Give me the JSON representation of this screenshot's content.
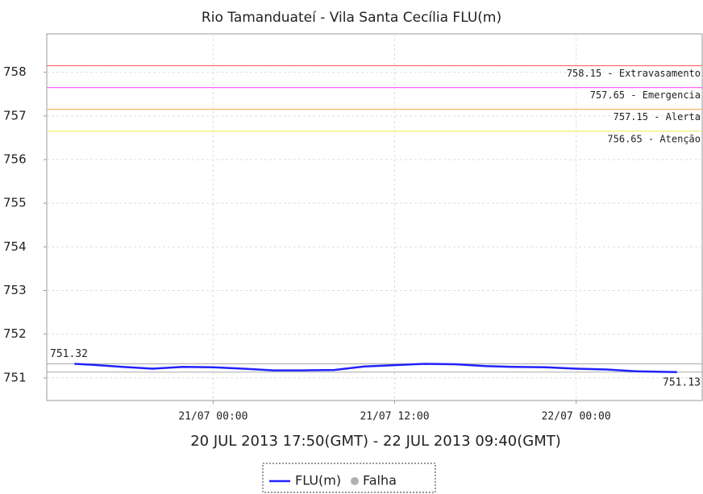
{
  "chart_data": {
    "type": "line",
    "title": "Rio Tamanduateí - Vila Santa Cecília FLU(m)",
    "x_label": "20 JUL 2013 17:50(GMT) - 22 JUL 2013 09:40(GMT)",
    "x": [
      "20/07 14:50",
      "20/07 16:00",
      "20/07 18:00",
      "20/07 20:00",
      "20/07 22:00",
      "21/07 00:00",
      "21/07 02:00",
      "21/07 04:00",
      "21/07 06:00",
      "21/07 08:00",
      "21/07 10:00",
      "21/07 12:00",
      "21/07 14:00",
      "21/07 16:00",
      "21/07 18:00",
      "21/07 20:00",
      "21/07 22:00",
      "22/07 00:00",
      "22/07 02:00",
      "22/07 04:00",
      "22/07 06:40"
    ],
    "series": [
      {
        "name": "FLU(m)",
        "color": "#2222ff",
        "values": [
          751.32,
          751.3,
          751.25,
          751.21,
          751.25,
          751.24,
          751.21,
          751.17,
          751.17,
          751.18,
          751.26,
          751.29,
          751.32,
          751.31,
          751.27,
          751.25,
          751.24,
          751.21,
          751.19,
          751.15,
          751.13
        ]
      }
    ],
    "failure_legend": {
      "name": "Falha",
      "color": "#b0b0b0"
    },
    "xlim": [
      "20/07 13:00",
      "22/07 08:20"
    ],
    "xticks": [
      "21/07 00:00",
      "21/07 12:00",
      "22/07 00:00"
    ],
    "ylim": [
      750.48,
      758.88
    ],
    "yticks": [
      751,
      752,
      753,
      754,
      755,
      756,
      757,
      758
    ],
    "grid": true,
    "thresholds": [
      {
        "value": 758.15,
        "label": "758.15 - Extravasamento",
        "color": "#ff6666"
      },
      {
        "value": 757.65,
        "label": "757.65 - Emergencia",
        "color": "#ff66ff"
      },
      {
        "value": 757.15,
        "label": "757.15 - Alerta",
        "color": "#ffaa55"
      },
      {
        "value": 756.65,
        "label": "756.65 - Atenção",
        "color": "#eeee66"
      }
    ],
    "max_line": {
      "value": 751.32,
      "label": "751.32",
      "color": "#aaaaaa"
    },
    "min_line": {
      "value": 751.13,
      "label": "751.13",
      "color": "#aaaaaa"
    }
  }
}
